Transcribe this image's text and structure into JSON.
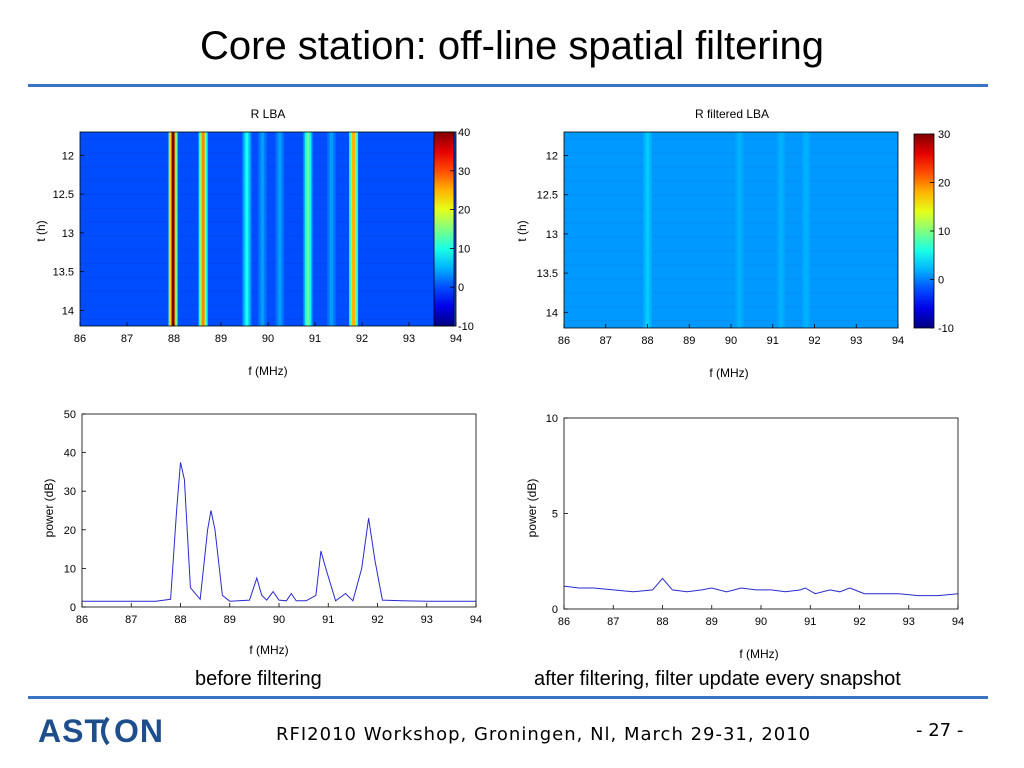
{
  "slide": {
    "title": "Core station: off-line spatial filtering",
    "footer": "RFI2010 Workshop, Groningen, Nl, March 29-31, 2010",
    "page": "- 27 -",
    "logo_text": "ASTRON",
    "captions": {
      "before": "before filtering",
      "after": "after filtering, filter update every snapshot"
    }
  },
  "colors": {
    "rule": "#3b73c4",
    "logo": "#1f4e8c",
    "line": "#2a2ad0"
  },
  "chart_data": [
    {
      "id": "heatmap_before",
      "type": "heatmap",
      "title": "R LBA",
      "xlabel": "f (MHz)",
      "ylabel": "t (h)",
      "xlim": [
        86,
        94
      ],
      "ylim": [
        11.7,
        14.2
      ],
      "xticks": [
        "86",
        "87",
        "88",
        "89",
        "90",
        "91",
        "92",
        "93",
        "94"
      ],
      "yticks": [
        "12",
        "12.5",
        "13",
        "13.5",
        "14"
      ],
      "yvals": [
        12,
        12.5,
        13,
        13.5,
        14
      ],
      "background_value": 0,
      "bands": [
        {
          "f": 87.98,
          "value": 40
        },
        {
          "f": 88.62,
          "value": 27
        },
        {
          "f": 89.55,
          "value": 10
        },
        {
          "f": 89.88,
          "value": 4
        },
        {
          "f": 90.25,
          "value": 4
        },
        {
          "f": 90.85,
          "value": 14
        },
        {
          "f": 91.35,
          "value": 4
        },
        {
          "f": 91.82,
          "value": 25
        }
      ],
      "colorbar": {
        "min": -10,
        "max": 40,
        "ticks": [
          "40",
          "30",
          "20",
          "10",
          "0",
          "-10"
        ],
        "tickvals": [
          40,
          30,
          20,
          10,
          0,
          -10
        ]
      }
    },
    {
      "id": "heatmap_after",
      "type": "heatmap",
      "title": "R filtered LBA",
      "xlabel": "f (MHz)",
      "ylabel": "t (h)",
      "xlim": [
        86,
        94
      ],
      "ylim": [
        11.7,
        14.2
      ],
      "xticks": [
        "86",
        "87",
        "88",
        "89",
        "90",
        "91",
        "92",
        "93",
        "94"
      ],
      "yticks": [
        "12",
        "12.5",
        "13",
        "13.5",
        "14"
      ],
      "yvals": [
        12,
        12.5,
        13,
        13.5,
        14
      ],
      "background_value": 1,
      "bands": [
        {
          "f": 88.0,
          "value": 3
        },
        {
          "f": 90.2,
          "value": 2
        },
        {
          "f": 91.2,
          "value": 2
        },
        {
          "f": 91.8,
          "value": 2
        }
      ],
      "colorbar": {
        "min": -10,
        "max": 30,
        "ticks": [
          "30",
          "20",
          "10",
          "0",
          "-10"
        ],
        "tickvals": [
          30,
          20,
          10,
          0,
          -10
        ]
      }
    },
    {
      "id": "line_before",
      "type": "line",
      "xlabel": "f (MHz)",
      "ylabel": "power (dB)",
      "xlim": [
        86,
        94
      ],
      "ylim": [
        0,
        50
      ],
      "xticks": [
        "86",
        "87",
        "88",
        "89",
        "90",
        "91",
        "92",
        "93",
        "94"
      ],
      "yticks": [
        "0",
        "10",
        "20",
        "30",
        "40",
        "50"
      ],
      "yvals": [
        0,
        10,
        20,
        30,
        40,
        50
      ],
      "series": [
        {
          "x": [
            86.0,
            86.5,
            87.0,
            87.5,
            87.8,
            87.92,
            88.0,
            88.08,
            88.2,
            88.4,
            88.55,
            88.62,
            88.7,
            88.85,
            89.0,
            89.4,
            89.55,
            89.65,
            89.75,
            89.88,
            90.0,
            90.15,
            90.25,
            90.35,
            90.55,
            90.75,
            90.85,
            90.95,
            91.15,
            91.35,
            91.5,
            91.68,
            91.82,
            91.95,
            92.1,
            92.5,
            93.0,
            93.5,
            94.0
          ],
          "y": [
            1.5,
            1.5,
            1.5,
            1.5,
            2,
            25,
            37.5,
            33,
            5,
            2,
            20,
            25,
            20,
            3,
            1.5,
            1.8,
            7.5,
            3,
            1.8,
            4,
            1.8,
            1.6,
            3.5,
            1.6,
            1.6,
            3,
            14.5,
            10,
            1.6,
            3.5,
            1.6,
            10,
            23,
            12,
            1.8,
            1.6,
            1.5,
            1.5,
            1.5
          ]
        }
      ]
    },
    {
      "id": "line_after",
      "type": "line",
      "xlabel": "f (MHz)",
      "ylabel": "power (dB)",
      "xlim": [
        86,
        94
      ],
      "ylim": [
        0,
        10
      ],
      "xticks": [
        "86",
        "87",
        "88",
        "89",
        "90",
        "91",
        "92",
        "93",
        "94"
      ],
      "yticks": [
        "0",
        "5",
        "10"
      ],
      "yvals": [
        0,
        5,
        10
      ],
      "series": [
        {
          "x": [
            86.0,
            86.3,
            86.6,
            87.0,
            87.4,
            87.8,
            88.0,
            88.2,
            88.5,
            88.8,
            89.0,
            89.3,
            89.6,
            89.9,
            90.2,
            90.5,
            90.8,
            90.9,
            91.1,
            91.4,
            91.6,
            91.8,
            91.9,
            92.1,
            92.4,
            92.8,
            93.2,
            93.6,
            94.0
          ],
          "y": [
            1.2,
            1.1,
            1.1,
            1.0,
            0.9,
            1.0,
            1.6,
            1.0,
            0.9,
            1.0,
            1.1,
            0.9,
            1.1,
            1.0,
            1.0,
            0.9,
            1.0,
            1.1,
            0.8,
            1.0,
            0.9,
            1.1,
            1.0,
            0.8,
            0.8,
            0.8,
            0.7,
            0.7,
            0.8
          ]
        }
      ]
    }
  ]
}
